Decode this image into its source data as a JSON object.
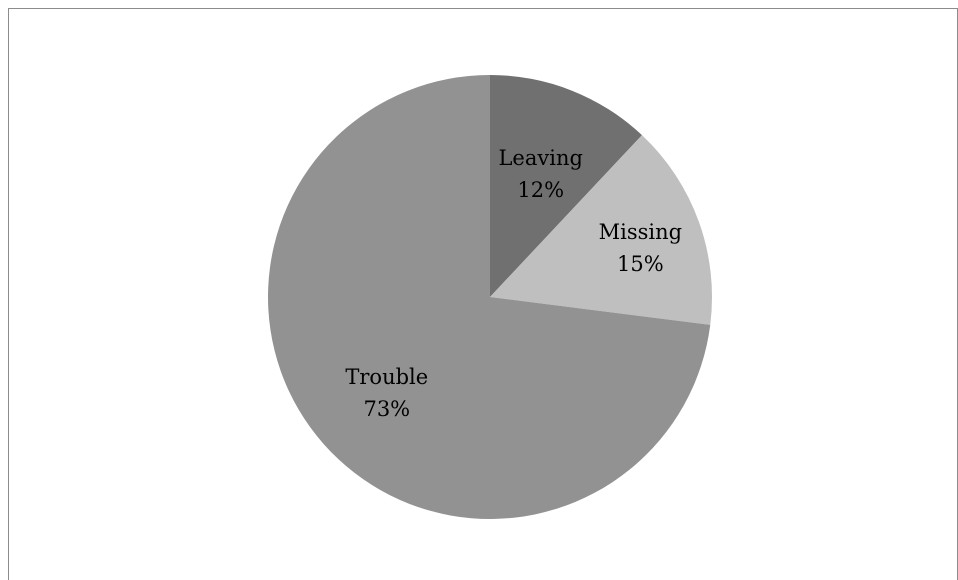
{
  "chart_data": {
    "type": "pie",
    "title": "",
    "start_angle_deg": 0,
    "direction": "clockwise",
    "slices": [
      {
        "label": "Leaving",
        "value": 12,
        "value_label": "12%",
        "color": "#707070"
      },
      {
        "label": "Missing",
        "value": 15,
        "value_label": "15%",
        "color": "#bfbfbf"
      },
      {
        "label": "Trouble",
        "value": 73,
        "value_label": "73%",
        "color": "#929292"
      }
    ],
    "legend": "none"
  }
}
